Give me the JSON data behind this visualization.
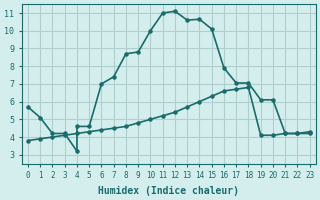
{
  "xlabel": "Humidex (Indice chaleur)",
  "ylabel": "",
  "bg_color": "#d4eeed",
  "grid_color": "#b0cece",
  "line_color": "#1a6b6b",
  "xlim": [
    -0.5,
    23.5
  ],
  "ylim": [
    2.5,
    11.5
  ],
  "xticks": [
    0,
    1,
    2,
    3,
    4,
    5,
    6,
    7,
    8,
    9,
    10,
    11,
    12,
    13,
    14,
    15,
    16,
    17,
    18,
    19,
    20,
    21,
    22,
    23
  ],
  "yticks": [
    3,
    4,
    5,
    6,
    7,
    8,
    9,
    10,
    11
  ],
  "line1_x": [
    0,
    1,
    2,
    3,
    4,
    4,
    5,
    6,
    7,
    8,
    9,
    10,
    11,
    12,
    13,
    14,
    15,
    16,
    17,
    18,
    19,
    20,
    21,
    22,
    23
  ],
  "line1_y": [
    5.7,
    5.1,
    4.2,
    4.2,
    3.2,
    4.6,
    4.6,
    7.0,
    7.4,
    8.7,
    8.8,
    10.0,
    11.0,
    11.1,
    10.6,
    10.65,
    10.1,
    7.9,
    7.05,
    7.05,
    6.1,
    6.1,
    4.2,
    4.2,
    4.3
  ],
  "line2_x": [
    0,
    1,
    2,
    3,
    4,
    5,
    6,
    7,
    8,
    9,
    10,
    11,
    12,
    13,
    14,
    15,
    16,
    17,
    18,
    19,
    20,
    21,
    22,
    23
  ],
  "line2_y": [
    3.8,
    3.9,
    4.0,
    4.1,
    4.2,
    4.3,
    4.4,
    4.5,
    4.6,
    4.8,
    5.0,
    5.2,
    5.4,
    5.7,
    6.0,
    6.3,
    6.6,
    6.7,
    6.8,
    4.1,
    4.1,
    4.2,
    4.2,
    4.2
  ]
}
